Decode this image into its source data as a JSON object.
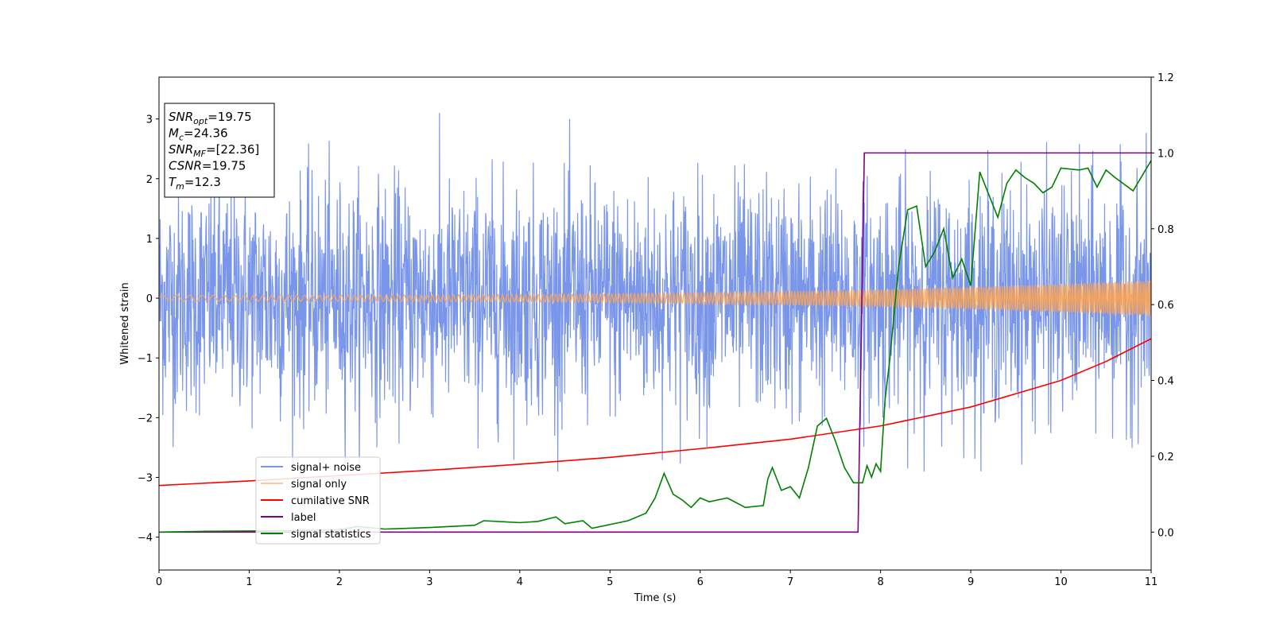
{
  "chart_data": {
    "type": "line",
    "xlabel": "Time (s)",
    "ylabel": "Whitened strain",
    "xlim": [
      0,
      11
    ],
    "ylim": [
      -4.55,
      3.7
    ],
    "y2lim": [
      -0.1,
      1.2
    ],
    "xticks": [
      "0",
      "1",
      "2",
      "3",
      "4",
      "5",
      "6",
      "7",
      "8",
      "9",
      "10",
      "11"
    ],
    "yticks": [
      "−4",
      "−3",
      "−2",
      "−1",
      "0",
      "1",
      "2",
      "3"
    ],
    "y2ticks": [
      "0.0",
      "0.2",
      "0.4",
      "0.6",
      "0.8",
      "1.0",
      "1.2"
    ],
    "grid": false,
    "legend_position": "lower-left",
    "annotation": {
      "lines": [
        {
          "sym": "SNR",
          "sub": "opt",
          "value": "=19.75"
        },
        {
          "sym": "M",
          "sub": "c",
          "value": "=24.36"
        },
        {
          "sym": "SNR",
          "sub": "MF",
          "value": "=[22.36]"
        },
        {
          "sym": "CSNR",
          "sub": "",
          "value": "=19.75"
        },
        {
          "sym": "T",
          "sub": "m",
          "value": "=12.3"
        }
      ]
    },
    "series": [
      {
        "name": "signal+ noise",
        "axis": "left",
        "color": "#4169e1",
        "kind": "noise",
        "envelope": [
          -2.9,
          3.1
        ]
      },
      {
        "name": "signal only",
        "axis": "left",
        "color": "#ffa54f",
        "kind": "chirp",
        "amplitude_start": 0.05,
        "amplitude_end": 0.3
      },
      {
        "name": "cumilative SNR",
        "axis": "right",
        "color": "#ff0000",
        "x": [
          0,
          1,
          2,
          3,
          4,
          5,
          6,
          7,
          8,
          9,
          10,
          10.5,
          11
        ],
        "y": [
          0.123,
          0.135,
          0.149,
          0.163,
          0.179,
          0.197,
          0.22,
          0.245,
          0.28,
          0.33,
          0.4,
          0.45,
          0.51
        ]
      },
      {
        "name": "label",
        "axis": "right",
        "color": "#800080",
        "x": [
          0,
          7.75,
          7.82,
          11
        ],
        "y": [
          0,
          0,
          1,
          1
        ]
      },
      {
        "name": "signal statistics",
        "axis": "right",
        "color": "#008000",
        "x": [
          0,
          0.5,
          1,
          1.5,
          2,
          2.2,
          2.5,
          3,
          3.5,
          3.6,
          4,
          4.2,
          4.4,
          4.5,
          4.7,
          4.8,
          5,
          5.2,
          5.4,
          5.5,
          5.6,
          5.7,
          5.8,
          5.9,
          6,
          6.1,
          6.3,
          6.5,
          6.7,
          6.75,
          6.8,
          6.9,
          7.0,
          7.1,
          7.2,
          7.3,
          7.4,
          7.5,
          7.6,
          7.7,
          7.8,
          7.85,
          7.9,
          7.95,
          8.0,
          8.05,
          8.1,
          8.2,
          8.3,
          8.4,
          8.5,
          8.6,
          8.7,
          8.8,
          8.9,
          9.0,
          9.1,
          9.2,
          9.3,
          9.4,
          9.5,
          9.6,
          9.7,
          9.8,
          9.9,
          10.0,
          10.2,
          10.3,
          10.4,
          10.5,
          10.6,
          10.8,
          11.0
        ],
        "y": [
          0.0,
          0.002,
          0.003,
          0.004,
          0.006,
          0.015,
          0.008,
          0.012,
          0.018,
          0.03,
          0.025,
          0.028,
          0.04,
          0.022,
          0.03,
          0.01,
          0.02,
          0.03,
          0.05,
          0.09,
          0.155,
          0.1,
          0.085,
          0.065,
          0.09,
          0.08,
          0.09,
          0.065,
          0.07,
          0.14,
          0.17,
          0.11,
          0.12,
          0.09,
          0.17,
          0.28,
          0.3,
          0.24,
          0.17,
          0.13,
          0.13,
          0.175,
          0.145,
          0.18,
          0.16,
          0.35,
          0.45,
          0.7,
          0.85,
          0.86,
          0.7,
          0.74,
          0.8,
          0.67,
          0.72,
          0.65,
          0.95,
          0.89,
          0.83,
          0.92,
          0.955,
          0.935,
          0.92,
          0.895,
          0.91,
          0.96,
          0.955,
          0.96,
          0.91,
          0.955,
          0.935,
          0.9,
          0.98
        ]
      }
    ]
  }
}
